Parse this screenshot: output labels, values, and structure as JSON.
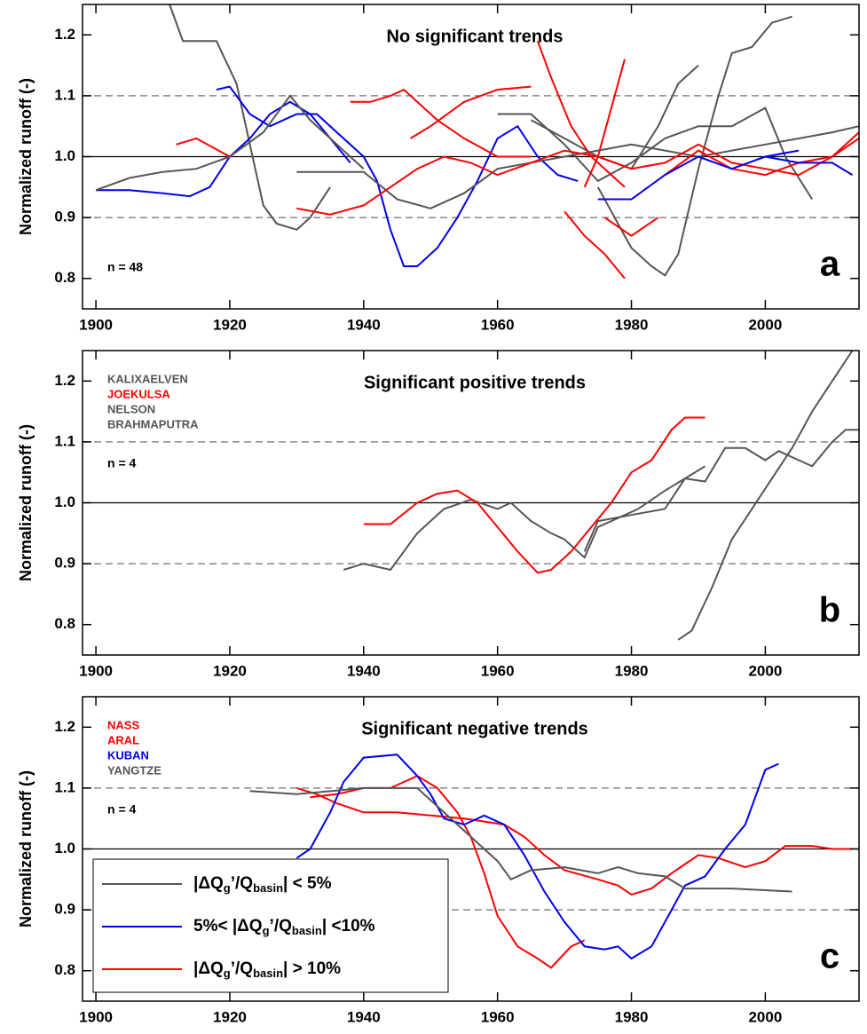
{
  "chart_data": [
    {
      "type": "line",
      "title": "No significant trends",
      "ylabel": "Normalized runoff (-)",
      "panel_label": "a",
      "annotation": "n = 48",
      "xlim": [
        1898,
        2014
      ],
      "ylim": [
        0.75,
        1.25
      ],
      "xticks": [
        1900,
        1920,
        1940,
        1960,
        1980,
        2000
      ],
      "yticks": [
        0.8,
        0.9,
        {
          "value": 1,
          "label": "1.0"
        },
        1.1,
        1.2
      ],
      "reference_lines": [
        {
          "value": 0.9,
          "style": "dashed"
        },
        {
          "value": 1,
          "style": "solid"
        },
        {
          "value": 1.1,
          "style": "dashed"
        }
      ],
      "series": [
        {
          "color": "#555555",
          "x": [
            1911,
            1913,
            1918,
            1921,
            1923,
            1925,
            1927,
            1930,
            1932,
            1935
          ],
          "values": [
            1.25,
            1.19,
            1.19,
            1.12,
            1.02,
            0.92,
            0.89,
            0.88,
            0.9,
            0.95
          ]
        },
        {
          "color": "#0000ee",
          "x": [
            1918,
            1920,
            1923,
            1926,
            1930,
            1933,
            1936,
            1940,
            1942,
            1944,
            1946,
            1948,
            1951,
            1954,
            1957,
            1960,
            1963,
            1966,
            1969,
            1972
          ],
          "values": [
            1.11,
            1.115,
            1.07,
            1.05,
            1.07,
            1.07,
            1.04,
            1.0,
            0.96,
            0.88,
            0.82,
            0.82,
            0.85,
            0.9,
            0.96,
            1.03,
            1.05,
            1.0,
            0.97,
            0.96
          ]
        },
        {
          "color": "#0000ee",
          "x": [
            1900,
            1905,
            1910,
            1914,
            1917,
            1920,
            1923,
            1926,
            1929,
            1932,
            1935,
            1938
          ],
          "values": [
            0.945,
            0.945,
            0.94,
            0.935,
            0.95,
            1.0,
            1.03,
            1.07,
            1.09,
            1.07,
            1.03,
            0.99
          ]
        },
        {
          "color": "#555555",
          "x": [
            1900,
            1905,
            1910,
            1915,
            1920,
            1925,
            1929,
            1932,
            1936,
            1940
          ],
          "values": [
            0.945,
            0.965,
            0.975,
            0.98,
            1.0,
            1.04,
            1.1,
            1.06,
            1.02,
            0.98
          ]
        },
        {
          "color": "#555555",
          "x": [
            1965,
            1970,
            1975,
            1980,
            1984,
            1987,
            1990
          ],
          "values": [
            1.06,
            1.03,
            1.0,
            0.98,
            1.05,
            1.12,
            1.15
          ]
        },
        {
          "color": "#555555",
          "x": [
            1975,
            1978,
            1980,
            1983,
            1985,
            1987,
            1990,
            1993,
            1995,
            1998,
            2001,
            2004
          ],
          "values": [
            0.95,
            0.89,
            0.85,
            0.82,
            0.805,
            0.84,
            0.98,
            1.1,
            1.17,
            1.18,
            1.22,
            1.23
          ]
        },
        {
          "color": "#555555",
          "x": [
            1960,
            1965,
            1970,
            1975,
            1980,
            1985,
            1990,
            1995,
            2000,
            2003,
            2007
          ],
          "values": [
            1.07,
            1.07,
            1.02,
            0.96,
            0.99,
            1.03,
            1.05,
            1.05,
            1.08,
            1.0,
            0.93
          ]
        },
        {
          "color": "#555555",
          "x": [
            1930,
            1940,
            1945,
            1950,
            1955,
            1960,
            1970,
            1980,
            1990,
            2000,
            2010,
            2014
          ],
          "values": [
            0.975,
            0.975,
            0.93,
            0.915,
            0.94,
            0.98,
            1.0,
            1.02,
            1.0,
            1.02,
            1.04,
            1.05
          ]
        },
        {
          "color": "#ff0000",
          "x": [
            1966,
            1968,
            1971,
            1974,
            1977,
            1979
          ],
          "values": [
            1.19,
            1.13,
            1.05,
            1.0,
            0.97,
            0.95
          ]
        },
        {
          "color": "#ff0000",
          "x": [
            1970,
            1973,
            1976,
            1979
          ],
          "values": [
            0.91,
            0.87,
            0.84,
            0.8
          ]
        },
        {
          "color": "#ff0000",
          "x": [
            1973,
            1975,
            1977,
            1979
          ],
          "values": [
            0.95,
            1.0,
            1.08,
            1.16
          ]
        },
        {
          "color": "#ff0000",
          "x": [
            1912,
            1915,
            1920
          ],
          "values": [
            1.02,
            1.03,
            1.0
          ]
        },
        {
          "color": "#ff0000",
          "x": [
            1938,
            1941,
            1944,
            1946,
            1948,
            1951,
            1955,
            1960,
            1965
          ],
          "values": [
            1.09,
            1.09,
            1.1,
            1.11,
            1.09,
            1.06,
            1.03,
            1.0,
            1.0
          ]
        },
        {
          "color": "#ff0000",
          "x": [
            1947,
            1950,
            1955,
            1960,
            1965
          ],
          "values": [
            1.03,
            1.05,
            1.09,
            1.11,
            1.115
          ]
        },
        {
          "color": "#ff0000",
          "x": [
            1930,
            1935,
            1940,
            1944,
            1948,
            1952,
            1956,
            1960,
            1965,
            1970,
            1975,
            1980,
            1985,
            1990,
            1995,
            2000,
            2005,
            2010,
            2014
          ],
          "values": [
            0.915,
            0.905,
            0.92,
            0.95,
            0.98,
            1.0,
            0.99,
            0.97,
            0.99,
            1.01,
            1.0,
            0.98,
            0.99,
            1.02,
            0.99,
            0.98,
            0.97,
            1.0,
            1.03
          ]
        },
        {
          "color": "#ff0000",
          "x": [
            1976,
            1980,
            1984
          ],
          "values": [
            0.9,
            0.87,
            0.9
          ]
        },
        {
          "color": "#ff0000",
          "x": [
            1985,
            1990,
            1995,
            2000,
            2005,
            2010,
            2014
          ],
          "values": [
            0.97,
            1.01,
            0.98,
            0.97,
            0.99,
            1.0,
            1.04
          ]
        },
        {
          "color": "#0000ee",
          "x": [
            1975,
            1980,
            1985,
            1990,
            1995,
            2000,
            2005
          ],
          "values": [
            0.93,
            0.93,
            0.97,
            1.0,
            0.98,
            1.0,
            1.01
          ]
        },
        {
          "color": "#0000ee",
          "x": [
            2000,
            2005,
            2010,
            2013
          ],
          "values": [
            1.0,
            0.99,
            0.99,
            0.97
          ]
        }
      ]
    },
    {
      "type": "line",
      "title": "Significant positive trends",
      "ylabel": "Normalized runoff (-)",
      "panel_label": "b",
      "annotation": "n = 4",
      "xlim": [
        1898,
        2014
      ],
      "ylim": [
        0.75,
        1.25
      ],
      "xticks": [
        1900,
        1920,
        1940,
        1960,
        1980,
        2000
      ],
      "yticks": [
        0.8,
        0.9,
        {
          "value": 1,
          "label": "1.0"
        },
        1.1,
        1.2
      ],
      "reference_lines": [
        {
          "value": 0.9,
          "style": "dashed"
        },
        {
          "value": 1,
          "style": "solid"
        },
        {
          "value": 1.1,
          "style": "dashed"
        }
      ],
      "series": [
        {
          "name": "KALIXAELVEN",
          "color": "#555555",
          "x": [
            1937,
            1940,
            1944,
            1948,
            1952,
            1956,
            1960,
            1962,
            1965,
            1968,
            1970,
            1973,
            1975,
            1978,
            1981,
            1985,
            1988,
            1991
          ],
          "values": [
            0.89,
            0.9,
            0.89,
            0.95,
            0.99,
            1.005,
            0.99,
            1.0,
            0.97,
            0.95,
            0.94,
            0.91,
            0.96,
            0.975,
            0.99,
            1.02,
            1.04,
            1.06
          ]
        },
        {
          "name": "JOEKULSA",
          "color": "#ff0000",
          "x": [
            1940,
            1944,
            1948,
            1951,
            1954,
            1957,
            1960,
            1963,
            1966,
            1968,
            1971,
            1974,
            1977,
            1980,
            1983,
            1986,
            1988,
            1991
          ],
          "values": [
            0.965,
            0.965,
            1.0,
            1.015,
            1.02,
            1.0,
            0.96,
            0.92,
            0.885,
            0.89,
            0.92,
            0.96,
            1.0,
            1.05,
            1.07,
            1.12,
            1.14,
            1.14
          ]
        },
        {
          "name": "NELSON",
          "color": "#555555",
          "x": [
            1973,
            1975,
            1980,
            1985,
            1988,
            1991,
            1994,
            1997,
            2000,
            2002,
            2005,
            2007,
            2010,
            2012,
            2014
          ],
          "values": [
            0.92,
            0.97,
            0.98,
            0.99,
            1.04,
            1.035,
            1.09,
            1.09,
            1.07,
            1.085,
            1.07,
            1.06,
            1.1,
            1.12,
            1.12
          ]
        },
        {
          "name": "BRAHMAPUTRA",
          "color": "#555555",
          "x": [
            1987,
            1989,
            1992,
            1995,
            1998,
            2001,
            2004,
            2007,
            2010,
            2013
          ],
          "values": [
            0.775,
            0.79,
            0.86,
            0.94,
            0.99,
            1.04,
            1.09,
            1.15,
            1.2,
            1.25
          ]
        }
      ]
    },
    {
      "type": "line",
      "title": "Significant negative trends",
      "ylabel": "Normalized runoff (-)",
      "panel_label": "c",
      "annotation": "n = 4",
      "xlim": [
        1898,
        2014
      ],
      "ylim": [
        0.75,
        1.25
      ],
      "xticks": [
        1900,
        1920,
        1940,
        1960,
        1980,
        2000
      ],
      "yticks": [
        0.8,
        0.9,
        {
          "value": 1,
          "label": "1.0"
        },
        1.1,
        1.2
      ],
      "reference_lines": [
        {
          "value": 0.9,
          "style": "dashed"
        },
        {
          "value": 1,
          "style": "solid"
        },
        {
          "value": 1.1,
          "style": "dashed"
        }
      ],
      "series": [
        {
          "name": "NASS",
          "color": "#ff0000",
          "x": [
            1930,
            1933,
            1936,
            1940,
            1945,
            1950,
            1955,
            1958,
            1961,
            1964,
            1967,
            1970,
            1975,
            1978,
            1980,
            1983,
            1986,
            1990,
            1993,
            1997,
            2000,
            2003,
            2007,
            2010,
            2013
          ],
          "values": [
            1.1,
            1.09,
            1.075,
            1.06,
            1.06,
            1.055,
            1.05,
            1.045,
            1.04,
            1.02,
            0.99,
            0.965,
            0.95,
            0.94,
            0.925,
            0.935,
            0.96,
            0.99,
            0.985,
            0.97,
            0.98,
            1.005,
            1.005,
            1.0,
            1.0
          ]
        },
        {
          "name": "ARAL",
          "color": "#ff0000",
          "x": [
            1932,
            1936,
            1940,
            1944,
            1948,
            1951,
            1954,
            1956,
            1958,
            1960,
            1963,
            1966,
            1968,
            1971,
            1973
          ],
          "values": [
            1.085,
            1.09,
            1.1,
            1.1,
            1.12,
            1.1,
            1.06,
            1.02,
            0.96,
            0.89,
            0.84,
            0.82,
            0.805,
            0.84,
            0.85
          ]
        },
        {
          "name": "KUBAN",
          "color": "#0000ee",
          "x": [
            1930,
            1932,
            1935,
            1937,
            1940,
            1945,
            1948,
            1950,
            1952,
            1955,
            1958,
            1961,
            1964,
            1967,
            1970,
            1973,
            1976,
            1978,
            1980,
            1983,
            1986,
            1988,
            1991,
            1994,
            1997,
            2000,
            2002
          ],
          "values": [
            0.985,
            1.0,
            1.06,
            1.11,
            1.15,
            1.155,
            1.12,
            1.09,
            1.05,
            1.04,
            1.055,
            1.04,
            0.99,
            0.93,
            0.88,
            0.84,
            0.835,
            0.84,
            0.82,
            0.84,
            0.9,
            0.94,
            0.955,
            1.0,
            1.04,
            1.13,
            1.14
          ]
        },
        {
          "name": "YANGTZE",
          "color": "#555555",
          "x": [
            1923,
            1930,
            1940,
            1948,
            1952,
            1955,
            1958,
            1960,
            1962,
            1965,
            1970,
            1975,
            1978,
            1981,
            1985,
            1988,
            1995,
            2004
          ],
          "values": [
            1.095,
            1.09,
            1.1,
            1.1,
            1.06,
            1.03,
            1.0,
            0.98,
            0.95,
            0.965,
            0.97,
            0.96,
            0.97,
            0.96,
            0.955,
            0.935,
            0.935,
            0.93
          ]
        }
      ],
      "legend": [
        {
          "color": "#555555",
          "parts": [
            "|ΔQ",
            "g",
            "’/Q",
            "basin",
            "| < 5%"
          ]
        },
        {
          "color": "#0000ee",
          "parts": [
            "5%< |ΔQ",
            "g",
            "’/Q",
            "basin",
            "| <10%"
          ]
        },
        {
          "color": "#ff0000",
          "parts": [
            "|ΔQ",
            "g",
            "’/Q",
            "basin",
            "| > 10%"
          ]
        }
      ]
    }
  ]
}
